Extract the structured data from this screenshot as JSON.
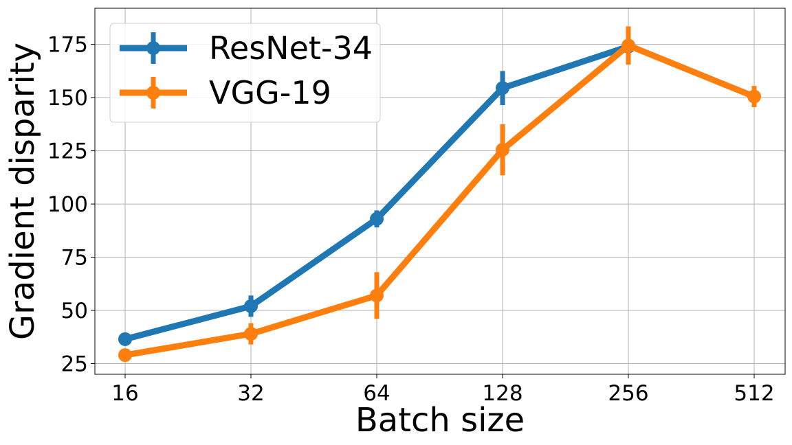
{
  "chart_data": {
    "type": "line",
    "xlabel": "Batch size",
    "ylabel": "Gradient disparity",
    "x_scale": "log2",
    "categories": [
      "16",
      "32",
      "64",
      "128",
      "256",
      "512"
    ],
    "x": [
      16,
      32,
      64,
      128,
      256,
      512
    ],
    "ylim": [
      20,
      192
    ],
    "yticks": [
      25,
      50,
      75,
      100,
      125,
      150,
      175
    ],
    "grid": true,
    "legend": "top-left",
    "error_bars": true,
    "series": [
      {
        "name": "ResNet-34",
        "color": "#1f77b4",
        "x": [
          16,
          32,
          64,
          128,
          256
        ],
        "values": [
          36.5,
          52,
          93,
          154.5,
          174
        ],
        "errors": [
          1.5,
          5,
          4,
          8,
          5
        ]
      },
      {
        "name": "VGG-19",
        "color": "#ff7f0e",
        "x": [
          16,
          32,
          64,
          128,
          256,
          512
        ],
        "values": [
          29,
          39,
          57,
          125.5,
          174.5,
          150.5
        ],
        "errors": [
          1,
          5,
          11,
          12,
          9,
          5
        ]
      }
    ]
  }
}
